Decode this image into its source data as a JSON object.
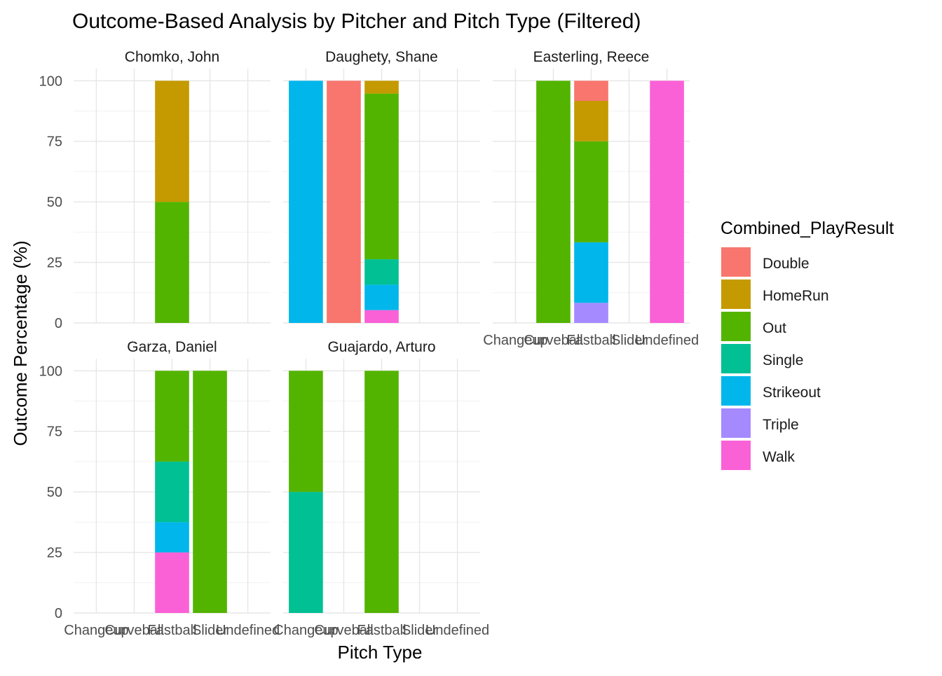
{
  "chart_data": {
    "type": "bar",
    "stacked": true,
    "title": "Outcome-Based Analysis by Pitcher and Pitch Type (Filtered)",
    "xlabel": "Pitch Type",
    "ylabel": "Outcome Percentage (%)",
    "ylim": [
      0,
      105
    ],
    "yticks": [
      0,
      25,
      50,
      75,
      100
    ],
    "grid": true,
    "legend_position": "right",
    "legend_title": "Combined_PlayResult",
    "categories": [
      "Changeup",
      "Curveball",
      "Fastball",
      "Slider",
      "Undefined"
    ],
    "outcomes": [
      "Double",
      "HomeRun",
      "Out",
      "Single",
      "Strikeout",
      "Triple",
      "Walk"
    ],
    "colors": {
      "Double": "#F8766D",
      "HomeRun": "#C49A00",
      "Out": "#53B400",
      "Single": "#00C094",
      "Strikeout": "#00B6EB",
      "Triple": "#A58AFF",
      "Walk": "#FB61D7"
    },
    "panels": [
      {
        "pitcher": "Chomko, John",
        "bars": {
          "Fastball": {
            "Out": 50,
            "HomeRun": 50
          }
        }
      },
      {
        "pitcher": "Daughety, Shane",
        "bars": {
          "Changeup": {
            "Strikeout": 100
          },
          "Curveball": {
            "Double": 100
          },
          "Fastball": {
            "Walk": 5.3,
            "Strikeout": 10.5,
            "Single": 10.5,
            "Out": 68.4,
            "HomeRun": 5.3
          }
        }
      },
      {
        "pitcher": "Easterling, Reece",
        "bars": {
          "Curveball": {
            "Out": 100
          },
          "Fastball": {
            "Triple": 8.3,
            "Strikeout": 25,
            "Out": 41.7,
            "HomeRun": 16.7,
            "Double": 8.3
          },
          "Undefined": {
            "Walk": 100
          }
        }
      },
      {
        "pitcher": "Garza, Daniel",
        "bars": {
          "Fastball": {
            "Walk": 25,
            "Strikeout": 12.5,
            "Single": 25,
            "Out": 37.5
          },
          "Slider": {
            "Out": 100
          }
        }
      },
      {
        "pitcher": "Guajardo, Arturo",
        "bars": {
          "Changeup": {
            "Single": 50,
            "Out": 50
          },
          "Fastball": {
            "Out": 100
          }
        }
      }
    ]
  }
}
